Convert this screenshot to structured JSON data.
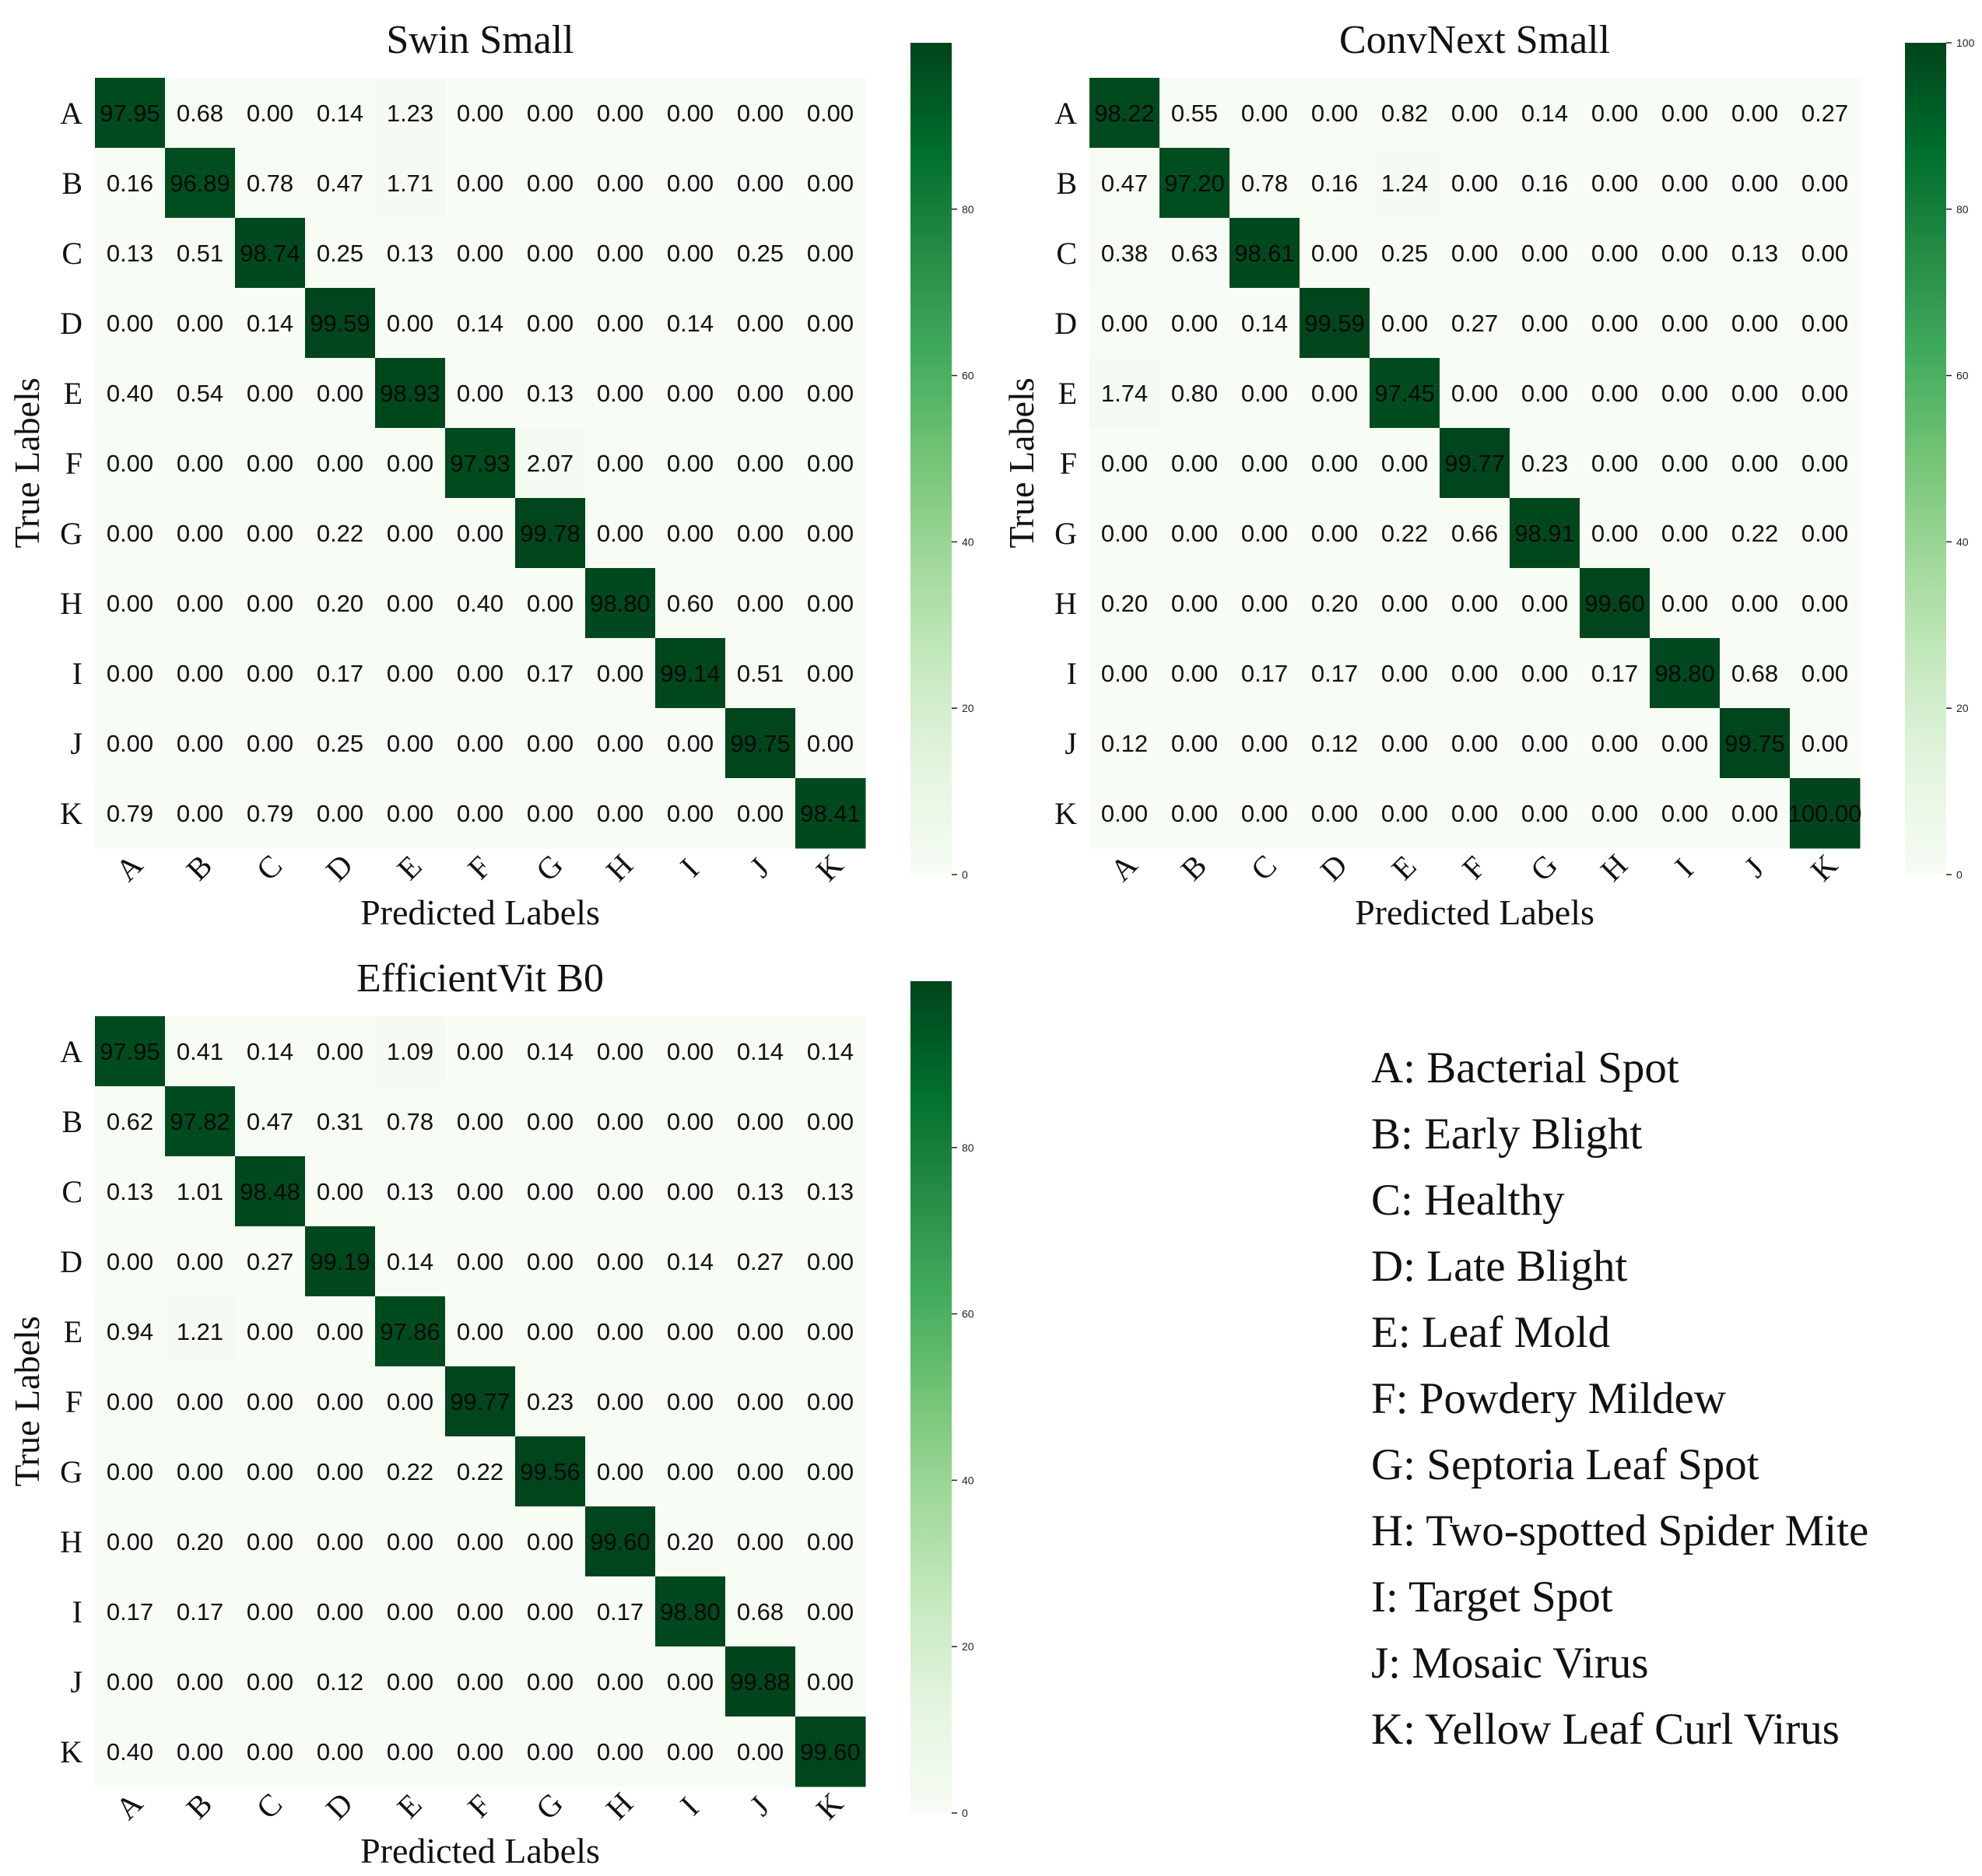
{
  "chart_data": [
    {
      "type": "heatmap",
      "title": "Swin Small",
      "xlabel": "Predicted Labels",
      "ylabel": "True Labels",
      "x_categories": [
        "A",
        "B",
        "C",
        "D",
        "E",
        "F",
        "G",
        "H",
        "I",
        "J",
        "K"
      ],
      "y_categories": [
        "A",
        "B",
        "C",
        "D",
        "E",
        "F",
        "G",
        "H",
        "I",
        "J",
        "K"
      ],
      "colormap": "Greens",
      "color_range": [
        0,
        100
      ],
      "colorbar_ticks": [
        "0",
        "20",
        "40",
        "60",
        "80"
      ],
      "values": [
        [
          97.95,
          0.68,
          0.0,
          0.14,
          1.23,
          0.0,
          0.0,
          0.0,
          0.0,
          0.0,
          0.0
        ],
        [
          0.16,
          96.89,
          0.78,
          0.47,
          1.71,
          0.0,
          0.0,
          0.0,
          0.0,
          0.0,
          0.0
        ],
        [
          0.13,
          0.51,
          98.74,
          0.25,
          0.13,
          0.0,
          0.0,
          0.0,
          0.0,
          0.25,
          0.0
        ],
        [
          0.0,
          0.0,
          0.14,
          99.59,
          0.0,
          0.14,
          0.0,
          0.0,
          0.14,
          0.0,
          0.0
        ],
        [
          0.4,
          0.54,
          0.0,
          0.0,
          98.93,
          0.0,
          0.13,
          0.0,
          0.0,
          0.0,
          0.0
        ],
        [
          0.0,
          0.0,
          0.0,
          0.0,
          0.0,
          97.93,
          2.07,
          0.0,
          0.0,
          0.0,
          0.0
        ],
        [
          0.0,
          0.0,
          0.0,
          0.22,
          0.0,
          0.0,
          99.78,
          0.0,
          0.0,
          0.0,
          0.0
        ],
        [
          0.0,
          0.0,
          0.0,
          0.2,
          0.0,
          0.4,
          0.0,
          98.8,
          0.6,
          0.0,
          0.0
        ],
        [
          0.0,
          0.0,
          0.0,
          0.17,
          0.0,
          0.0,
          0.17,
          0.0,
          99.14,
          0.51,
          0.0
        ],
        [
          0.0,
          0.0,
          0.0,
          0.25,
          0.0,
          0.0,
          0.0,
          0.0,
          0.0,
          99.75,
          0.0
        ],
        [
          0.79,
          0.0,
          0.79,
          0.0,
          0.0,
          0.0,
          0.0,
          0.0,
          0.0,
          0.0,
          98.41
        ]
      ]
    },
    {
      "type": "heatmap",
      "title": "ConvNext Small",
      "xlabel": "Predicted Labels",
      "ylabel": "True Labels",
      "x_categories": [
        "A",
        "B",
        "C",
        "D",
        "E",
        "F",
        "G",
        "H",
        "I",
        "J",
        "K"
      ],
      "y_categories": [
        "A",
        "B",
        "C",
        "D",
        "E",
        "F",
        "G",
        "H",
        "I",
        "J",
        "K"
      ],
      "colormap": "Greens",
      "color_range": [
        0,
        100
      ],
      "colorbar_ticks": [
        "0",
        "20",
        "40",
        "60",
        "80",
        "100"
      ],
      "values": [
        [
          98.22,
          0.55,
          0.0,
          0.0,
          0.82,
          0.0,
          0.14,
          0.0,
          0.0,
          0.0,
          0.27
        ],
        [
          0.47,
          97.2,
          0.78,
          0.16,
          1.24,
          0.0,
          0.16,
          0.0,
          0.0,
          0.0,
          0.0
        ],
        [
          0.38,
          0.63,
          98.61,
          0.0,
          0.25,
          0.0,
          0.0,
          0.0,
          0.0,
          0.13,
          0.0
        ],
        [
          0.0,
          0.0,
          0.14,
          99.59,
          0.0,
          0.27,
          0.0,
          0.0,
          0.0,
          0.0,
          0.0
        ],
        [
          1.74,
          0.8,
          0.0,
          0.0,
          97.45,
          0.0,
          0.0,
          0.0,
          0.0,
          0.0,
          0.0
        ],
        [
          0.0,
          0.0,
          0.0,
          0.0,
          0.0,
          99.77,
          0.23,
          0.0,
          0.0,
          0.0,
          0.0
        ],
        [
          0.0,
          0.0,
          0.0,
          0.0,
          0.22,
          0.66,
          98.91,
          0.0,
          0.0,
          0.22,
          0.0
        ],
        [
          0.2,
          0.0,
          0.0,
          0.2,
          0.0,
          0.0,
          0.0,
          99.6,
          0.0,
          0.0,
          0.0
        ],
        [
          0.0,
          0.0,
          0.17,
          0.17,
          0.0,
          0.0,
          0.0,
          0.17,
          98.8,
          0.68,
          0.0
        ],
        [
          0.12,
          0.0,
          0.0,
          0.12,
          0.0,
          0.0,
          0.0,
          0.0,
          0.0,
          99.75,
          0.0
        ],
        [
          0.0,
          0.0,
          0.0,
          0.0,
          0.0,
          0.0,
          0.0,
          0.0,
          0.0,
          0.0,
          100.0
        ]
      ]
    },
    {
      "type": "heatmap",
      "title": "EfficientVit B0",
      "xlabel": "Predicted Labels",
      "ylabel": "True Labels",
      "x_categories": [
        "A",
        "B",
        "C",
        "D",
        "E",
        "F",
        "G",
        "H",
        "I",
        "J",
        "K"
      ],
      "y_categories": [
        "A",
        "B",
        "C",
        "D",
        "E",
        "F",
        "G",
        "H",
        "I",
        "J",
        "K"
      ],
      "colormap": "Greens",
      "color_range": [
        0,
        100
      ],
      "colorbar_ticks": [
        "0",
        "20",
        "40",
        "60",
        "80"
      ],
      "values": [
        [
          97.95,
          0.41,
          0.14,
          0.0,
          1.09,
          0.0,
          0.14,
          0.0,
          0.0,
          0.14,
          0.14
        ],
        [
          0.62,
          97.82,
          0.47,
          0.31,
          0.78,
          0.0,
          0.0,
          0.0,
          0.0,
          0.0,
          0.0
        ],
        [
          0.13,
          1.01,
          98.48,
          0.0,
          0.13,
          0.0,
          0.0,
          0.0,
          0.0,
          0.13,
          0.13
        ],
        [
          0.0,
          0.0,
          0.27,
          99.19,
          0.14,
          0.0,
          0.0,
          0.0,
          0.14,
          0.27,
          0.0
        ],
        [
          0.94,
          1.21,
          0.0,
          0.0,
          97.86,
          0.0,
          0.0,
          0.0,
          0.0,
          0.0,
          0.0
        ],
        [
          0.0,
          0.0,
          0.0,
          0.0,
          0.0,
          99.77,
          0.23,
          0.0,
          0.0,
          0.0,
          0.0
        ],
        [
          0.0,
          0.0,
          0.0,
          0.0,
          0.22,
          0.22,
          99.56,
          0.0,
          0.0,
          0.0,
          0.0
        ],
        [
          0.0,
          0.2,
          0.0,
          0.0,
          0.0,
          0.0,
          0.0,
          99.6,
          0.2,
          0.0,
          0.0
        ],
        [
          0.17,
          0.17,
          0.0,
          0.0,
          0.0,
          0.0,
          0.0,
          0.17,
          98.8,
          0.68,
          0.0
        ],
        [
          0.0,
          0.0,
          0.0,
          0.12,
          0.0,
          0.0,
          0.0,
          0.0,
          0.0,
          99.88,
          0.0
        ],
        [
          0.4,
          0.0,
          0.0,
          0.0,
          0.0,
          0.0,
          0.0,
          0.0,
          0.0,
          0.0,
          99.6
        ]
      ]
    }
  ],
  "legend": [
    "A: Bacterial Spot",
    "B: Early Blight",
    "C: Healthy",
    "D: Late Blight",
    "E: Leaf Mold",
    "F: Powdery Mildew",
    "G: Septoria Leaf Spot",
    "H: Two-spotted Spider Mite",
    "I: Target Spot",
    "J: Mosaic Virus",
    "K: Yellow Leaf Curl Virus"
  ]
}
